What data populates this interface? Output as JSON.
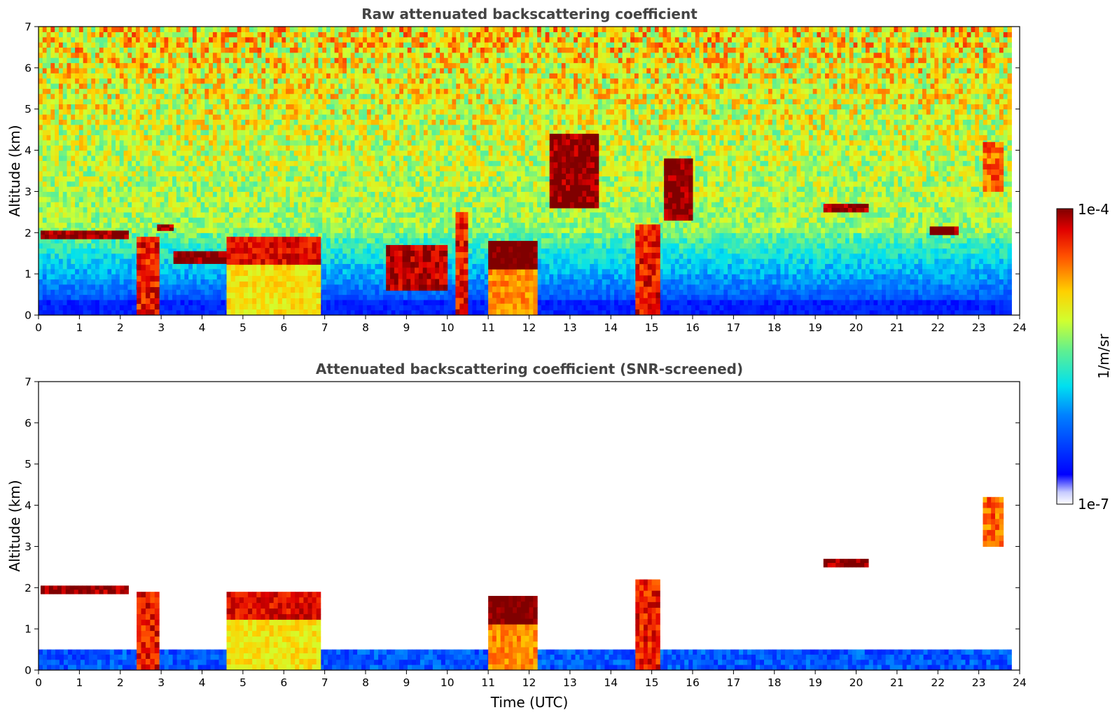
{
  "chart_data": [
    {
      "type": "heatmap",
      "title": "Raw attenuated backscattering coefficient",
      "xlabel": "",
      "ylabel": "Altitude (km)",
      "xlim": [
        0,
        24
      ],
      "ylim": [
        0,
        7
      ],
      "x_ticks": [
        "0",
        "1",
        "2",
        "3",
        "4",
        "5",
        "6",
        "7",
        "8",
        "9",
        "10",
        "11",
        "12",
        "13",
        "14",
        "15",
        "16",
        "17",
        "18",
        "19",
        "20",
        "21",
        "22",
        "23",
        "24"
      ],
      "y_ticks": [
        "0",
        "1",
        "2",
        "3",
        "4",
        "5",
        "6",
        "7"
      ],
      "data_end_time": 23.8,
      "scale": "log",
      "screening": "none",
      "features": [
        {
          "kind": "cloud_layer",
          "t": [
            0.05,
            2.2
          ],
          "alt": [
            1.85,
            2.05
          ],
          "value": "1e-4"
        },
        {
          "kind": "precip_shaft",
          "t": [
            2.4,
            2.95
          ],
          "alt": [
            0,
            1.9
          ],
          "value": "5e-5"
        },
        {
          "kind": "cloud_layer",
          "t": [
            2.9,
            3.3
          ],
          "alt": [
            2.05,
            2.2
          ],
          "value": "1e-4"
        },
        {
          "kind": "cloud_layer",
          "t": [
            3.3,
            4.6
          ],
          "alt": [
            1.25,
            1.55
          ],
          "value": "1e-4"
        },
        {
          "kind": "thick_aerosol",
          "t": [
            4.6,
            6.9
          ],
          "alt": [
            0,
            1.9
          ],
          "value": "2e-5"
        },
        {
          "kind": "precip_shaft",
          "t": [
            8.5,
            10.0
          ],
          "alt": [
            0.6,
            1.7
          ],
          "value": "8e-5"
        },
        {
          "kind": "precip_shaft",
          "t": [
            10.2,
            10.5
          ],
          "alt": [
            0,
            2.5
          ],
          "value": "5e-5"
        },
        {
          "kind": "convective_cell",
          "t": [
            11.0,
            12.2
          ],
          "alt": [
            0,
            1.8
          ],
          "value": "4e-5"
        },
        {
          "kind": "cloud_patch",
          "t": [
            12.5,
            13.7
          ],
          "alt": [
            2.6,
            4.4
          ],
          "value": "1e-4"
        },
        {
          "kind": "precip_shaft",
          "t": [
            14.6,
            15.2
          ],
          "alt": [
            0,
            2.2
          ],
          "value": "5e-5"
        },
        {
          "kind": "cloud_patch",
          "t": [
            15.3,
            16.0
          ],
          "alt": [
            2.3,
            3.8
          ],
          "value": "1e-4"
        },
        {
          "kind": "cloud_layer",
          "t": [
            19.2,
            20.3
          ],
          "alt": [
            2.5,
            2.7
          ],
          "value": "1e-4"
        },
        {
          "kind": "cloud_layer",
          "t": [
            21.8,
            22.5
          ],
          "alt": [
            1.95,
            2.15
          ],
          "value": "1e-4"
        },
        {
          "kind": "cloud_patch",
          "t": [
            23.1,
            23.6
          ],
          "alt": [
            3.0,
            4.2
          ],
          "value": "3e-5"
        }
      ]
    },
    {
      "type": "heatmap",
      "title": "Attenuated backscattering coefficient (SNR-screened)",
      "xlabel": "Time (UTC)",
      "ylabel": "Altitude (km)",
      "xlim": [
        0,
        24
      ],
      "ylim": [
        0,
        7
      ],
      "x_ticks": [
        "0",
        "1",
        "2",
        "3",
        "4",
        "5",
        "6",
        "7",
        "8",
        "9",
        "10",
        "11",
        "12",
        "13",
        "14",
        "15",
        "16",
        "17",
        "18",
        "19",
        "20",
        "21",
        "22",
        "23",
        "24"
      ],
      "y_ticks": [
        "0",
        "1",
        "2",
        "3",
        "4",
        "5",
        "6",
        "7"
      ],
      "data_end_time": 23.8,
      "scale": "log",
      "screening": "SNR",
      "features": [
        {
          "kind": "boundary_layer",
          "t": [
            0,
            23.8
          ],
          "alt": [
            0,
            0.5
          ],
          "value": "5e-7"
        },
        {
          "kind": "cloud_layer",
          "t": [
            0.05,
            2.2
          ],
          "alt": [
            1.85,
            2.05
          ],
          "value": "1e-4"
        },
        {
          "kind": "precip_shaft",
          "t": [
            2.4,
            2.95
          ],
          "alt": [
            0,
            1.9
          ],
          "value": "5e-5"
        },
        {
          "kind": "thick_aerosol",
          "t": [
            4.6,
            6.9
          ],
          "alt": [
            0,
            1.9
          ],
          "value": "2e-5"
        },
        {
          "kind": "convective_cell",
          "t": [
            11.0,
            12.2
          ],
          "alt": [
            0,
            1.8
          ],
          "value": "4e-5"
        },
        {
          "kind": "precip_shaft",
          "t": [
            14.6,
            15.2
          ],
          "alt": [
            0,
            2.2
          ],
          "value": "5e-5"
        },
        {
          "kind": "cloud_layer",
          "t": [
            19.2,
            20.3
          ],
          "alt": [
            2.5,
            2.7
          ],
          "value": "1e-4"
        },
        {
          "kind": "cloud_patch",
          "t": [
            23.1,
            23.6
          ],
          "alt": [
            3.0,
            4.2
          ],
          "value": "3e-5"
        }
      ]
    }
  ],
  "colorbar": {
    "label": "1/m/sr",
    "min_label": "1e-7",
    "max_label": "1e-4",
    "colormap": "jet (white-to-blue low end)"
  }
}
